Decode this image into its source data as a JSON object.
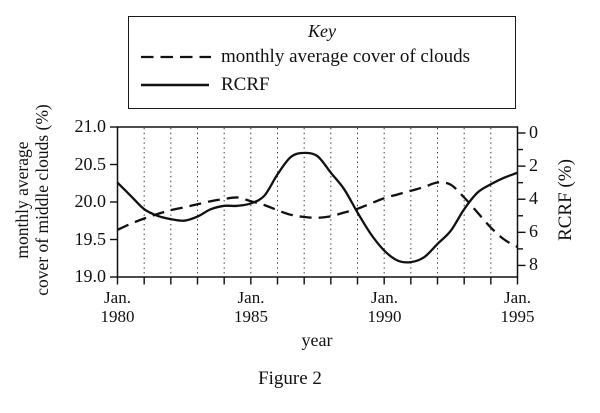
{
  "figure": {
    "caption": "Figure 2"
  },
  "key": {
    "title": "Key",
    "entries": [
      {
        "label": "monthly average cover of clouds",
        "line_style": "dashed"
      },
      {
        "label": "RCRF",
        "line_style": "solid"
      }
    ]
  },
  "axes": {
    "left": {
      "title_line1": "monthly average",
      "title_line2": "cover of middle clouds (%)",
      "ticks": [
        "21.0",
        "20.5",
        "20.0",
        "19.5",
        "19.0"
      ]
    },
    "right": {
      "title": "RCRF (%)",
      "ticks": [
        "0",
        "2",
        "4",
        "6",
        "8"
      ]
    },
    "x": {
      "title": "year",
      "tick_labels": [
        {
          "month": "Jan.",
          "year": "1980"
        },
        {
          "month": "Jan.",
          "year": "1985"
        },
        {
          "month": "Jan.",
          "year": "1990"
        },
        {
          "month": "Jan.",
          "year": "1995"
        }
      ]
    }
  },
  "colors": {
    "ink": "#111111",
    "grid": "#3a3a3a",
    "background": "#ffffff"
  },
  "chart_data": {
    "type": "line",
    "title": "",
    "xlabel": "year",
    "ylabel_left": "monthly average cover of middle clouds (%)",
    "ylabel_right": "RCRF (%)",
    "x_range": [
      1980,
      1995
    ],
    "x_major_tick_years": [
      1980,
      1985,
      1990,
      1995
    ],
    "x_minor_ticks_every_year": true,
    "left_range": [
      19.0,
      21.0
    ],
    "right_range": [
      0,
      8
    ],
    "right_axis_inverted_downward": true,
    "grid": {
      "vertical_dotted_every_year": true,
      "horizontal": false
    },
    "legend_position": "top",
    "x": [
      1980,
      1980.5,
      1981,
      1981.5,
      1982,
      1982.5,
      1983,
      1983.5,
      1984,
      1984.5,
      1985,
      1985.5,
      1986,
      1986.5,
      1987,
      1987.5,
      1988,
      1988.5,
      1989,
      1989.5,
      1990,
      1990.5,
      1991,
      1991.5,
      1992,
      1992.5,
      1993,
      1993.5,
      1994,
      1994.5,
      1995
    ],
    "series": [
      {
        "name": "monthly average cover of clouds",
        "axis": "left",
        "style": "dashed",
        "values": [
          19.63,
          19.71,
          19.78,
          19.84,
          19.89,
          19.93,
          19.97,
          20.01,
          20.04,
          20.06,
          20.01,
          19.96,
          19.89,
          19.83,
          19.8,
          19.79,
          19.81,
          19.86,
          19.91,
          19.98,
          20.05,
          20.1,
          20.15,
          20.2,
          20.26,
          20.23,
          20.06,
          19.86,
          19.66,
          19.5,
          19.4
        ]
      },
      {
        "name": "RCRF",
        "axis": "right",
        "style": "solid",
        "values": [
          3.0,
          3.8,
          4.6,
          5.0,
          5.2,
          5.3,
          5.05,
          4.6,
          4.4,
          4.4,
          4.25,
          3.8,
          2.5,
          1.45,
          1.2,
          1.4,
          2.4,
          3.4,
          4.8,
          6.1,
          7.1,
          7.7,
          7.8,
          7.5,
          6.7,
          5.9,
          4.6,
          3.6,
          3.1,
          2.7,
          2.4
        ]
      }
    ]
  }
}
